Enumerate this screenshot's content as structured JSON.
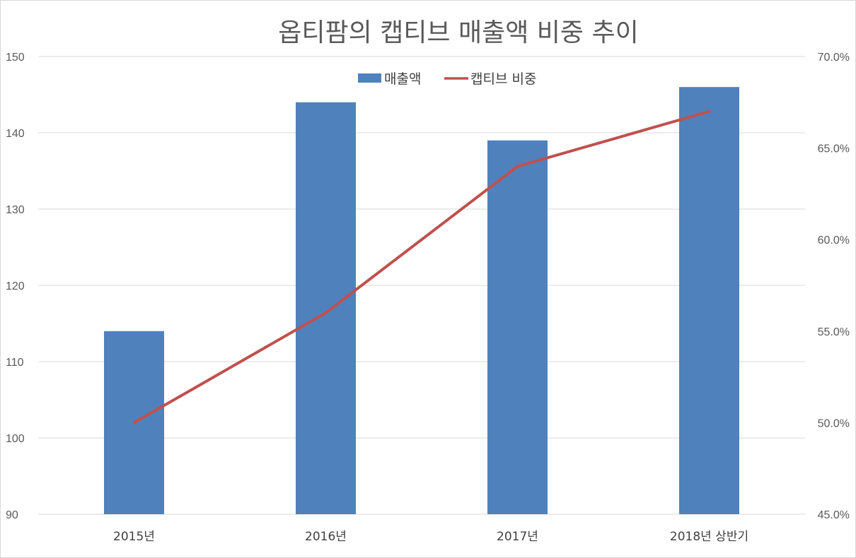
{
  "chart_data": {
    "type": "bar",
    "title": "옵티팜의 캡티브 매출액 비중 추이",
    "categories": [
      "2015년",
      "2016년",
      "2017년",
      "2018년 상반기"
    ],
    "series": [
      {
        "name": "매출액",
        "kind": "bar",
        "axis": "left",
        "color": "#4f81bd",
        "values": [
          114,
          144,
          139,
          146
        ]
      },
      {
        "name": "캡티브 비중",
        "kind": "line",
        "axis": "right",
        "color": "#c0504d",
        "values": [
          0.5,
          0.56,
          0.64,
          0.67
        ]
      }
    ],
    "y_left": {
      "min": 90,
      "max": 150,
      "ticks": [
        "90",
        "100",
        "110",
        "120",
        "130",
        "140",
        "150"
      ]
    },
    "y_right": {
      "min": 0.45,
      "max": 0.7,
      "ticks": [
        "45.0%",
        "50.0%",
        "55.0%",
        "60.0%",
        "65.0%",
        "70.0%"
      ]
    },
    "legend": "top-center",
    "grid": true
  }
}
